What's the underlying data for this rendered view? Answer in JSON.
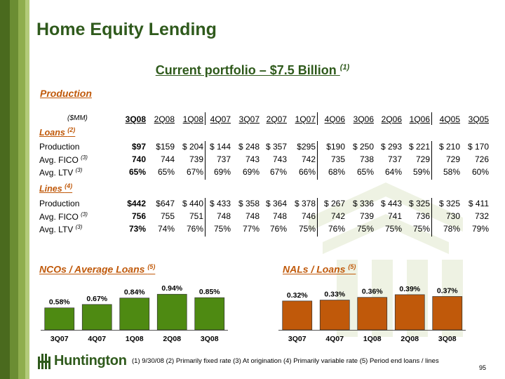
{
  "title": "Home Equity Lending",
  "subtitle": {
    "text": "Current portfolio – $7.5 Billion ",
    "sup": "(1)"
  },
  "production_heading": "Production",
  "units_label": "($MM)",
  "columns": [
    "3Q08",
    "2Q08",
    "1Q08",
    "4Q07",
    "3Q07",
    "2Q07",
    "1Q07",
    "4Q06",
    "3Q06",
    "2Q06",
    "1Q06",
    "4Q05",
    "3Q05"
  ],
  "loans": {
    "heading": "Loans ",
    "heading_sup": "(2)",
    "rows": [
      {
        "label": "Production",
        "sup": "",
        "values": [
          "$97",
          "$159",
          "$ 204",
          "$ 144",
          "$ 248",
          "$ 357",
          "$295",
          "$190",
          "$ 250",
          "$ 293",
          "$ 221",
          "$ 210",
          "$ 170"
        ]
      },
      {
        "label": "Avg. FICO ",
        "sup": "(3)",
        "values": [
          "740",
          "744",
          "739",
          "737",
          "743",
          "743",
          "742",
          "735",
          "738",
          "737",
          "729",
          "729",
          "726"
        ]
      },
      {
        "label": "Avg. LTV ",
        "sup": "(3)",
        "values": [
          "65%",
          "65%",
          "67%",
          "69%",
          "69%",
          "67%",
          "66%",
          "68%",
          "65%",
          "64%",
          "59%",
          "58%",
          "60%"
        ]
      }
    ]
  },
  "lines": {
    "heading": "Lines ",
    "heading_sup": "(4)",
    "rows": [
      {
        "label": "Production",
        "sup": "",
        "values": [
          "$442",
          "$647",
          "$ 440",
          "$ 433",
          "$ 358",
          "$ 364",
          "$ 378",
          "$ 267",
          "$ 336",
          "$ 443",
          "$ 325",
          "$ 325",
          "$ 411"
        ]
      },
      {
        "label": "Avg. FICO ",
        "sup": "(3)",
        "values": [
          "756",
          "755",
          "751",
          "748",
          "748",
          "748",
          "746",
          "742",
          "739",
          "741",
          "736",
          "730",
          "732"
        ]
      },
      {
        "label": "Avg. LTV ",
        "sup": "(3)",
        "values": [
          "73%",
          "74%",
          "76%",
          "75%",
          "77%",
          "76%",
          "75%",
          "76%",
          "75%",
          "75%",
          "75%",
          "78%",
          "79%"
        ]
      }
    ]
  },
  "nco_heading": "NCOs / Average Loans ",
  "nco_heading_sup": "(5)",
  "nal_heading": "NALs / Loans ",
  "nal_heading_sup": "(5)",
  "chart_data": [
    {
      "type": "bar",
      "categories": [
        "3Q07",
        "4Q07",
        "1Q08",
        "2Q08",
        "3Q08"
      ],
      "values": [
        0.58,
        0.67,
        0.84,
        0.94,
        0.85
      ],
      "labels": [
        "0.58%",
        "0.67%",
        "0.84%",
        "0.94%",
        "0.85%"
      ],
      "color": "#4e8a12",
      "ylim": [
        0,
        1.0
      ]
    },
    {
      "type": "bar",
      "categories": [
        "3Q07",
        "4Q07",
        "1Q08",
        "2Q08",
        "3Q08"
      ],
      "values": [
        0.32,
        0.33,
        0.36,
        0.39,
        0.37
      ],
      "labels": [
        "0.32%",
        "0.33%",
        "0.36%",
        "0.39%",
        "0.37%"
      ],
      "color": "#c0590a",
      "ylim": [
        0,
        0.42
      ]
    }
  ],
  "logo": {
    "text": "Huntington"
  },
  "footnote": "(1) 9/30/08   (2)  Primarily fixed rate   (3)  At origination   (4)  Primarily variable rate   (5)  Period end loans / lines",
  "page_number": "95",
  "colors": {
    "title_green": "#2f5a1c",
    "section_orange": "#c0590a",
    "nco_bar": "#4e8a12",
    "nal_bar": "#c0590a"
  }
}
